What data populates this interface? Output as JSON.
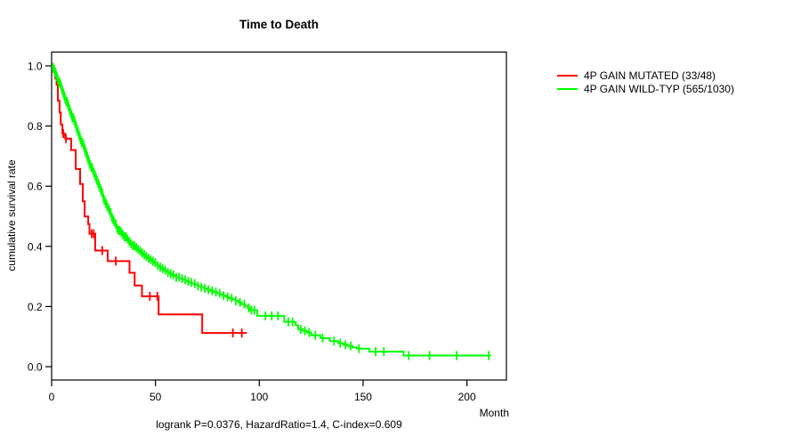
{
  "page": {
    "background": "#ffffff"
  },
  "chart_data": {
    "type": "line",
    "subtype": "kaplan-meier-step-curves",
    "title": "Time to Death",
    "xlabel": "Month",
    "ylabel": "cumulative survival rate",
    "footnote": "logrank P=0.0376, HazardRatio=1.4, C-index=0.609",
    "xlim": [
      0,
      219
    ],
    "ylim": [
      0,
      1
    ],
    "xticks": [
      0,
      50,
      100,
      150,
      200
    ],
    "xtick_labels": [
      "0",
      "50",
      "100",
      "150",
      "200"
    ],
    "yticks": [
      0,
      0.2,
      0.4,
      0.6,
      0.8,
      1.0
    ],
    "ytick_labels": [
      "0.0",
      "0.2",
      "0.4",
      "0.6",
      "0.8",
      "1.0"
    ],
    "grid": false,
    "legend_position": "right-outside",
    "axis_color": "#000000",
    "series": [
      {
        "name": "4P GAIN MUTATED (33/48)",
        "color": "#ff0000",
        "events_over_total": "33/48",
        "end_month": 94,
        "steps": [
          [
            0,
            1.0
          ],
          [
            1,
            0.98
          ],
          [
            1.8,
            0.958
          ],
          [
            2.4,
            0.937
          ],
          [
            3,
            0.884
          ],
          [
            3.8,
            0.845
          ],
          [
            4.4,
            0.805
          ],
          [
            5.2,
            0.775
          ],
          [
            6.5,
            0.758
          ],
          [
            9.4,
            0.72
          ],
          [
            11.6,
            0.657
          ],
          [
            13.7,
            0.607
          ],
          [
            15,
            0.55
          ],
          [
            15.9,
            0.499
          ],
          [
            17.6,
            0.474
          ],
          [
            18.2,
            0.442
          ],
          [
            21,
            0.386
          ],
          [
            27,
            0.351
          ],
          [
            37.5,
            0.312
          ],
          [
            40,
            0.27
          ],
          [
            43.5,
            0.234
          ],
          [
            51.5,
            0.174
          ],
          [
            72.5,
            0.112
          ]
        ],
        "censor_months": [
          5.6,
          6.9,
          19.3,
          20.3,
          24.4,
          30.9,
          47.3,
          50.9,
          87.3,
          91.6
        ]
      },
      {
        "name": "4P GAIN WILD-TYP (565/1030)",
        "color": "#00ff00",
        "events_over_total": "565/1030",
        "end_month": 211.6,
        "steps": [
          [
            0,
            1.0
          ],
          [
            0.5,
            0.995
          ],
          [
            1,
            0.988
          ],
          [
            1.5,
            0.98
          ],
          [
            2,
            0.972
          ],
          [
            2.5,
            0.963
          ],
          [
            3,
            0.954
          ],
          [
            3.5,
            0.945
          ],
          [
            4,
            0.936
          ],
          [
            4.5,
            0.927
          ],
          [
            5,
            0.918
          ],
          [
            5.5,
            0.909
          ],
          [
            6,
            0.9
          ],
          [
            6.5,
            0.891
          ],
          [
            7,
            0.882
          ],
          [
            7.5,
            0.873
          ],
          [
            8,
            0.864
          ],
          [
            8.5,
            0.855
          ],
          [
            9,
            0.846
          ],
          [
            9.5,
            0.837
          ],
          [
            10,
            0.828
          ],
          [
            10.5,
            0.819
          ],
          [
            11,
            0.81
          ],
          [
            11.5,
            0.8
          ],
          [
            12,
            0.791
          ],
          [
            12.5,
            0.782
          ],
          [
            13,
            0.773
          ],
          [
            13.5,
            0.764
          ],
          [
            14,
            0.754
          ],
          [
            14.5,
            0.745
          ],
          [
            15,
            0.736
          ],
          [
            15.5,
            0.727
          ],
          [
            16,
            0.717
          ],
          [
            16.5,
            0.708
          ],
          [
            17,
            0.699
          ],
          [
            17.5,
            0.69
          ],
          [
            18,
            0.681
          ],
          [
            18.5,
            0.672
          ],
          [
            19,
            0.663
          ],
          [
            19.5,
            0.654
          ],
          [
            20,
            0.645
          ],
          [
            20.5,
            0.636
          ],
          [
            21,
            0.627
          ],
          [
            21.5,
            0.619
          ],
          [
            22,
            0.61
          ],
          [
            22.5,
            0.602
          ],
          [
            23,
            0.593
          ],
          [
            23.5,
            0.585
          ],
          [
            24,
            0.577
          ],
          [
            24.5,
            0.568
          ],
          [
            25,
            0.56
          ],
          [
            25.5,
            0.552
          ],
          [
            26,
            0.544
          ],
          [
            26.5,
            0.536
          ],
          [
            27,
            0.528
          ],
          [
            27.5,
            0.52
          ],
          [
            28,
            0.512
          ],
          [
            28.5,
            0.505
          ],
          [
            29,
            0.497
          ],
          [
            29.5,
            0.489
          ],
          [
            30,
            0.482
          ],
          [
            30.5,
            0.474
          ],
          [
            31,
            0.467
          ],
          [
            31.5,
            0.46
          ],
          [
            32,
            0.453
          ],
          [
            33,
            0.446
          ],
          [
            34,
            0.439
          ],
          [
            35,
            0.432
          ],
          [
            36,
            0.424
          ],
          [
            37,
            0.416
          ],
          [
            38,
            0.409
          ],
          [
            39,
            0.402
          ],
          [
            40,
            0.396
          ],
          [
            41,
            0.39
          ],
          [
            42,
            0.384
          ],
          [
            43,
            0.378
          ],
          [
            44,
            0.372
          ],
          [
            45,
            0.366
          ],
          [
            46,
            0.36
          ],
          [
            47,
            0.356
          ],
          [
            48,
            0.351
          ],
          [
            49,
            0.346
          ],
          [
            50,
            0.341
          ],
          [
            51,
            0.336
          ],
          [
            52,
            0.331
          ],
          [
            53,
            0.326
          ],
          [
            54,
            0.321
          ],
          [
            55,
            0.317
          ],
          [
            56,
            0.313
          ],
          [
            57,
            0.309
          ],
          [
            58,
            0.305
          ],
          [
            59,
            0.301
          ],
          [
            60,
            0.297
          ],
          [
            61.5,
            0.293
          ],
          [
            63,
            0.289
          ],
          [
            64.5,
            0.284
          ],
          [
            66,
            0.28
          ],
          [
            67.5,
            0.276
          ],
          [
            69,
            0.272
          ],
          [
            70.5,
            0.268
          ],
          [
            72,
            0.264
          ],
          [
            73.5,
            0.26
          ],
          [
            75,
            0.256
          ],
          [
            76.5,
            0.252
          ],
          [
            78,
            0.248
          ],
          [
            79.5,
            0.244
          ],
          [
            81,
            0.24
          ],
          [
            82.5,
            0.236
          ],
          [
            84,
            0.232
          ],
          [
            85.5,
            0.228
          ],
          [
            87,
            0.224
          ],
          [
            88.5,
            0.219
          ],
          [
            90,
            0.214
          ],
          [
            91.5,
            0.208
          ],
          [
            93,
            0.202
          ],
          [
            94.5,
            0.195
          ],
          [
            95.5,
            0.188
          ],
          [
            99,
            0.169
          ],
          [
            112,
            0.149
          ],
          [
            117.5,
            0.138
          ],
          [
            118.7,
            0.124
          ],
          [
            121,
            0.119
          ],
          [
            123,
            0.114
          ],
          [
            125,
            0.104
          ],
          [
            129.5,
            0.095
          ],
          [
            134,
            0.085
          ],
          [
            138,
            0.078
          ],
          [
            140.5,
            0.073
          ],
          [
            142.5,
            0.069
          ],
          [
            145,
            0.064
          ],
          [
            147,
            0.06
          ],
          [
            153,
            0.05
          ],
          [
            169.5,
            0.037
          ]
        ],
        "censor_months": [
          0.7,
          1.2,
          1.7,
          2.1,
          2.6,
          3.1,
          3.5,
          3.9,
          4.4,
          4.8,
          5.2,
          5.7,
          6.1,
          6.5,
          7,
          7.4,
          7.8,
          8.2,
          8.7,
          9.1,
          9.5,
          10,
          10.4,
          10.9,
          11.3,
          11.8,
          12.2,
          12.7,
          13.1,
          13.6,
          14,
          14.5,
          14.9,
          15.4,
          15.8,
          16.3,
          16.7,
          17.2,
          17.6,
          18.1,
          18.5,
          19,
          19.4,
          19.9,
          20.4,
          20.9,
          21.4,
          21.9,
          22.4,
          22.9,
          23.4,
          23.9,
          24.4,
          25,
          25.5,
          26.1,
          26.6,
          27.2,
          27.8,
          28.4,
          29,
          29.6,
          30.2,
          30.9,
          31.5,
          32.2,
          32.9,
          33.6,
          34.3,
          35.1,
          35.8,
          36.6,
          37.4,
          38.2,
          39.1,
          39.9,
          40.8,
          41.7,
          42.7,
          43.6,
          44.6,
          45.6,
          46.7,
          47.7,
          48.8,
          49.9,
          51.1,
          52.3,
          53.5,
          54.7,
          56,
          57.3,
          58.6,
          60,
          61.4,
          62.8,
          64.3,
          65.8,
          67.3,
          68.9,
          70.5,
          72.1,
          73.8,
          75.5,
          77.3,
          79.1,
          80.9,
          82.8,
          84.7,
          86.7,
          88.7,
          90.7,
          92.8,
          94.9,
          96.2,
          97.6,
          103,
          106,
          109,
          114,
          116,
          120,
          122,
          124,
          127,
          130.5,
          136,
          139,
          141.5,
          144,
          148,
          156,
          160,
          172,
          182,
          195,
          210.5
        ]
      }
    ]
  }
}
